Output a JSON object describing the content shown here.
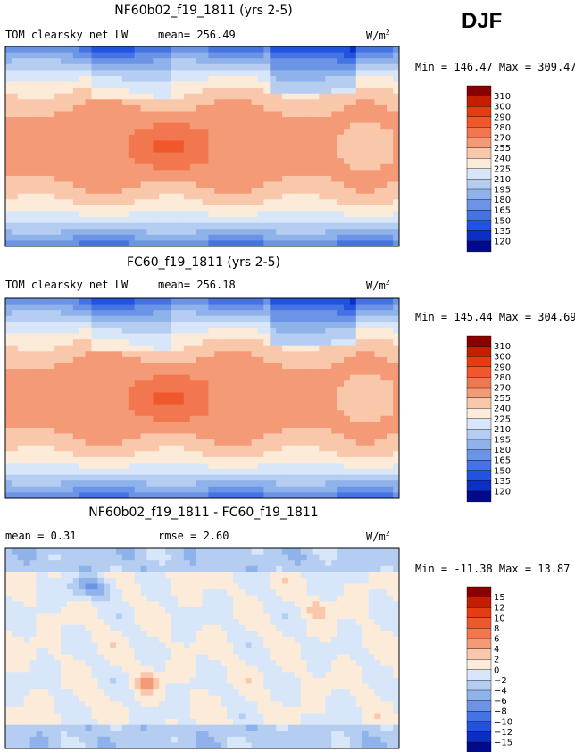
{
  "season": "DJF",
  "chart_data": [
    {
      "type": "heatmap",
      "title": "NF60b02_f19_1811 (yrs 2-5)",
      "variable": "TOM clearsky net LW",
      "mean_text": "mean= 256.49",
      "units": "W/m",
      "units_sup": "2",
      "minmax_text": "Min = 146.47 Max = 309.47",
      "colorbar": {
        "levels": [
          "310",
          "300",
          "290",
          "280",
          "270",
          "255",
          "240",
          "225",
          "210",
          "195",
          "180",
          "165",
          "150",
          "135",
          "120"
        ],
        "colors": [
          "#8b0000",
          "#c41d00",
          "#e53d12",
          "#f0582c",
          "#f2774f",
          "#f59a77",
          "#f9c7aa",
          "#fdebd9",
          "#d7e6f8",
          "#b4cdf0",
          "#8fb2ea",
          "#6b94e6",
          "#4673e3",
          "#2152e0",
          "#0a2fc2",
          "#000a8c"
        ]
      }
    },
    {
      "type": "heatmap",
      "title": "FC60_f19_1811 (yrs 2-5)",
      "variable": "TOM clearsky net LW",
      "mean_text": "mean= 256.18",
      "units": "W/m",
      "units_sup": "2",
      "minmax_text": "Min = 145.44 Max = 304.69",
      "colorbar": {
        "levels": [
          "310",
          "300",
          "290",
          "280",
          "270",
          "255",
          "240",
          "225",
          "210",
          "195",
          "180",
          "165",
          "150",
          "135",
          "120"
        ],
        "colors": [
          "#8b0000",
          "#c41d00",
          "#e53d12",
          "#f0582c",
          "#f2774f",
          "#f59a77",
          "#f9c7aa",
          "#fdebd9",
          "#d7e6f8",
          "#b4cdf0",
          "#8fb2ea",
          "#6b94e6",
          "#4673e3",
          "#2152e0",
          "#0a2fc2",
          "#000a8c"
        ]
      }
    },
    {
      "type": "heatmap",
      "title": "NF60b02_f19_1811 - FC60_f19_1811",
      "mean_text": "mean =   0.31",
      "rmse_text": "rmse =    2.60",
      "units": "W/m",
      "units_sup": "2",
      "minmax_text": "Min = -11.38 Max =  13.87",
      "colorbar": {
        "levels": [
          "15",
          "12",
          "10",
          "8",
          "6",
          "4",
          "2",
          "0",
          "−2",
          "−4",
          "−6",
          "−8",
          "−10",
          "−12",
          "−15"
        ],
        "colors": [
          "#8b0000",
          "#c41d00",
          "#e53d12",
          "#f0582c",
          "#f2774f",
          "#f59a77",
          "#f9c7aa",
          "#fdebd9",
          "#d7e6f8",
          "#b4cdf0",
          "#8fb2ea",
          "#6b94e6",
          "#4673e3",
          "#2152e0",
          "#0a2fc2",
          "#000a8c"
        ]
      }
    }
  ]
}
